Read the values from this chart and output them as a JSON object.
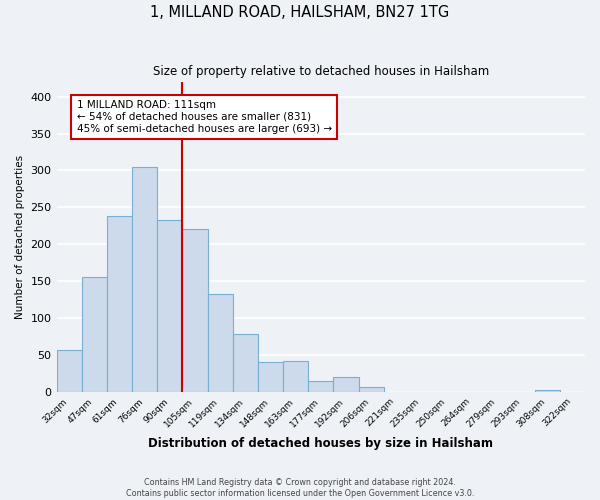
{
  "title_line1": "1, MILLAND ROAD, HAILSHAM, BN27 1TG",
  "title_line2": "Size of property relative to detached houses in Hailsham",
  "xlabel": "Distribution of detached houses by size in Hailsham",
  "ylabel": "Number of detached properties",
  "bar_labels": [
    "32sqm",
    "47sqm",
    "61sqm",
    "76sqm",
    "90sqm",
    "105sqm",
    "119sqm",
    "134sqm",
    "148sqm",
    "163sqm",
    "177sqm",
    "192sqm",
    "206sqm",
    "221sqm",
    "235sqm",
    "250sqm",
    "264sqm",
    "279sqm",
    "293sqm",
    "308sqm",
    "322sqm"
  ],
  "bar_values": [
    57,
    155,
    238,
    305,
    233,
    220,
    133,
    78,
    40,
    42,
    14,
    20,
    7,
    0,
    0,
    0,
    0,
    0,
    0,
    3,
    0
  ],
  "bar_color": "#ccdaeb",
  "bar_edge_color": "#7aafd4",
  "ylim": [
    0,
    420
  ],
  "yticks": [
    0,
    50,
    100,
    150,
    200,
    250,
    300,
    350,
    400
  ],
  "vline_x_index": 4.5,
  "vline_color": "#cc0000",
  "annotation_title": "1 MILLAND ROAD: 111sqm",
  "annotation_line1": "← 54% of detached houses are smaller (831)",
  "annotation_line2": "45% of semi-detached houses are larger (693) →",
  "annotation_box_color": "#ffffff",
  "annotation_box_edge": "#cc0000",
  "footer_line1": "Contains HM Land Registry data © Crown copyright and database right 2024.",
  "footer_line2": "Contains public sector information licensed under the Open Government Licence v3.0.",
  "background_color": "#eef2f7",
  "grid_color": "#ffffff"
}
